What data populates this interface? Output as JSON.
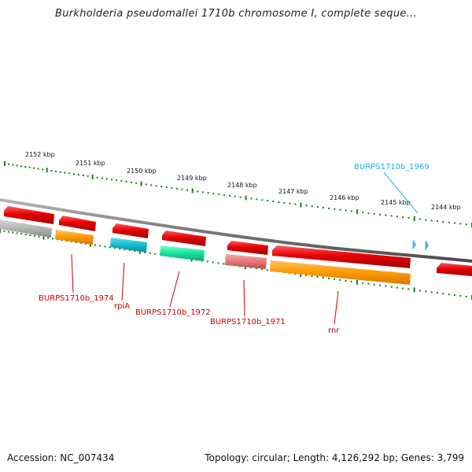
{
  "title": "Burkholderia pseudomallei 1710b chromosome I, complete seque...",
  "footer": {
    "accession": "Accession: NC_007434",
    "summary": "Topology: circular; Length: 4,126,292 bp; Genes: 3,799"
  },
  "scale_labels": [
    "2152 kbp",
    "2151 kbp",
    "2150 kbp",
    "2149 kbp",
    "2148 kbp",
    "2147 kbp",
    "2146 kbp",
    "2145 kbp",
    "2144 kbp"
  ],
  "gene_labels": [
    {
      "text": "BURPS1710b_1969",
      "color": "#22b5e0"
    },
    {
      "text": "BURPS1710b_1974",
      "color": "#cc0000"
    },
    {
      "text": "rpiA",
      "color": "#cc0000"
    },
    {
      "text": "BURPS1710b_1972",
      "color": "#cc0000"
    },
    {
      "text": "BURPS1710b_1971",
      "color": "#cc0000"
    },
    {
      "text": "rnr",
      "color": "#cc0000"
    }
  ],
  "colors": {
    "backbone": "#7a7a7a",
    "tick": "#1e7a1e",
    "cds": "#e60000",
    "label_gene": "#cc0000",
    "label_highlight": "#22b5e0",
    "track_gray": "#b4b4b4",
    "track_orange": "#ff9900",
    "track_cyan": "#11bdc9",
    "track_green": "#16e39a",
    "track_pink": "#e67777",
    "marker": "#3cb9ea"
  }
}
